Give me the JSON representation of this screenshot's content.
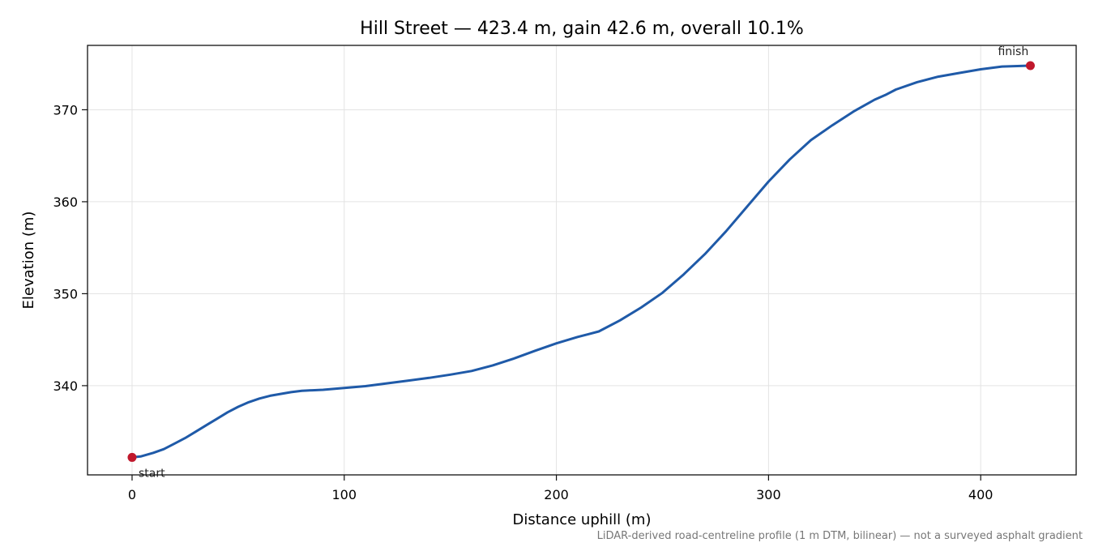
{
  "chart_data": {
    "type": "line",
    "title": "Hill Street — 423.4 m, gain 42.6 m, overall 10.1%",
    "xlabel": "Distance uphill (m)",
    "ylabel": "Elevation (m)",
    "xlim": [
      -21,
      445
    ],
    "ylim": [
      330.3,
      377
    ],
    "xticks": [
      0,
      100,
      200,
      300,
      400
    ],
    "yticks": [
      340,
      350,
      360,
      370
    ],
    "grid": true,
    "footnote": "LiDAR-derived road-centreline profile (1 m DTM, bilinear) — not a surveyed asphalt gradient",
    "colors": {
      "line": "#1f5aa8",
      "marker": "#c0182c"
    },
    "series": [
      {
        "x": [
          0,
          4,
          10,
          15,
          20,
          25,
          30,
          35,
          40,
          45,
          50,
          55,
          60,
          65,
          70,
          75,
          80,
          85,
          90,
          100,
          110,
          120,
          130,
          140,
          150,
          160,
          170,
          180,
          190,
          200,
          210,
          215,
          220,
          230,
          240,
          250,
          260,
          270,
          280,
          290,
          300,
          310,
          320,
          330,
          340,
          350,
          355,
          360,
          370,
          380,
          390,
          400,
          410,
          423.4
        ],
        "y": [
          332.2,
          332.3,
          332.7,
          333.1,
          333.7,
          334.3,
          335.0,
          335.7,
          336.4,
          337.1,
          337.7,
          338.2,
          338.6,
          338.9,
          339.1,
          339.3,
          339.45,
          339.5,
          339.55,
          339.75,
          339.95,
          340.25,
          340.55,
          340.85,
          341.2,
          341.6,
          342.2,
          342.95,
          343.8,
          344.6,
          345.3,
          345.6,
          345.9,
          347.1,
          348.5,
          350.1,
          352.1,
          354.3,
          356.8,
          359.5,
          362.2,
          364.6,
          366.7,
          368.3,
          369.8,
          371.1,
          371.6,
          372.2,
          373.0,
          373.6,
          374.0,
          374.4,
          374.7,
          374.8
        ]
      }
    ],
    "markers": [
      {
        "label": "start",
        "x": 0,
        "y": 332.2
      },
      {
        "label": "finish",
        "x": 423.4,
        "y": 374.8
      }
    ]
  }
}
